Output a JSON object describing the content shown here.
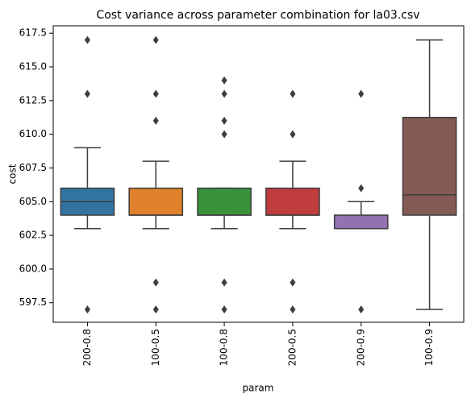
{
  "chart_data": {
    "type": "box",
    "title": "Cost variance across parameter combination for la03.csv",
    "xlabel": "param",
    "ylabel": "cost",
    "categories": [
      "200-0.8",
      "100-0.5",
      "100-0.8",
      "200-0.5",
      "200-0.9",
      "100-0.9"
    ],
    "colors": [
      "#3274a1",
      "#e1812c",
      "#3a923a",
      "#c03d3e",
      "#9372b2",
      "#845b53"
    ],
    "boxes": [
      {
        "whislo": 603,
        "q1": 604,
        "med": 605,
        "q3": 606,
        "whishi": 609,
        "fliers": [
          597,
          613,
          617
        ]
      },
      {
        "whislo": 603,
        "q1": 604,
        "med": 604,
        "q3": 606,
        "whishi": 608,
        "fliers": [
          597,
          599,
          611,
          613,
          617
        ]
      },
      {
        "whislo": 603,
        "q1": 604,
        "med": 604,
        "q3": 606,
        "whishi": 606,
        "fliers": [
          597,
          599,
          610,
          611,
          613,
          614
        ]
      },
      {
        "whislo": 603,
        "q1": 604,
        "med": 604,
        "q3": 606,
        "whishi": 608,
        "fliers": [
          597,
          599,
          610,
          613
        ]
      },
      {
        "whislo": 603,
        "q1": 603,
        "med": 603,
        "q3": 604,
        "whishi": 605,
        "fliers": [
          597,
          606,
          613
        ]
      },
      {
        "whislo": 597,
        "q1": 604,
        "med": 605.5,
        "q3": 611.25,
        "whishi": 617,
        "fliers": []
      }
    ],
    "ylim": [
      596.05,
      618.05
    ],
    "yticks": [
      597.5,
      {
        "value": 600,
        "label": "600.0"
      },
      602.5,
      {
        "value": 605,
        "label": "605.0"
      },
      607.5,
      {
        "value": 610,
        "label": "610.0"
      },
      612.5,
      {
        "value": 615,
        "label": "615.0"
      },
      617.5
    ]
  }
}
